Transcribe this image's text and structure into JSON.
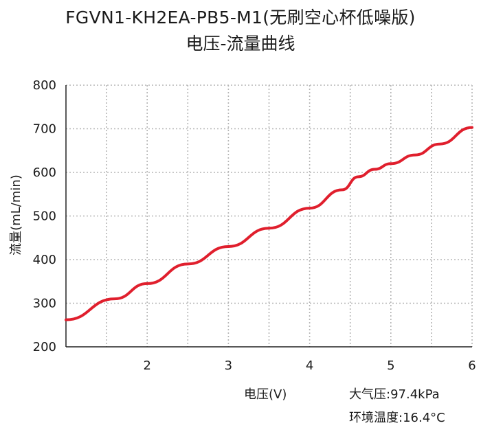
{
  "chart_data": {
    "type": "line",
    "title": "FGVN1-KH2EA-PB5-M1(无刷空心杯低噪版)",
    "subtitle": "电压-流量曲线",
    "xlabel": "电压(V)",
    "ylabel": "流量(mL/min)",
    "xlim": [
      1,
      6
    ],
    "ylim": [
      200,
      800
    ],
    "xticks": [
      2,
      3,
      4,
      5,
      6
    ],
    "yticks": [
      200,
      300,
      400,
      500,
      600,
      700,
      800
    ],
    "grid": true,
    "color": "#e01f2d",
    "series": [
      {
        "x": [
          1.0,
          1.6,
          2.0,
          2.5,
          3.0,
          3.5,
          4.0,
          4.4,
          4.6,
          4.8,
          5.0,
          5.3,
          5.6,
          6.0
        ],
        "y": [
          262,
          310,
          345,
          390,
          430,
          472,
          518,
          560,
          590,
          607,
          620,
          640,
          665,
          703
        ]
      }
    ],
    "annotations": [
      "大气压:97.4kPa",
      "环境温度:16.4°C"
    ]
  }
}
